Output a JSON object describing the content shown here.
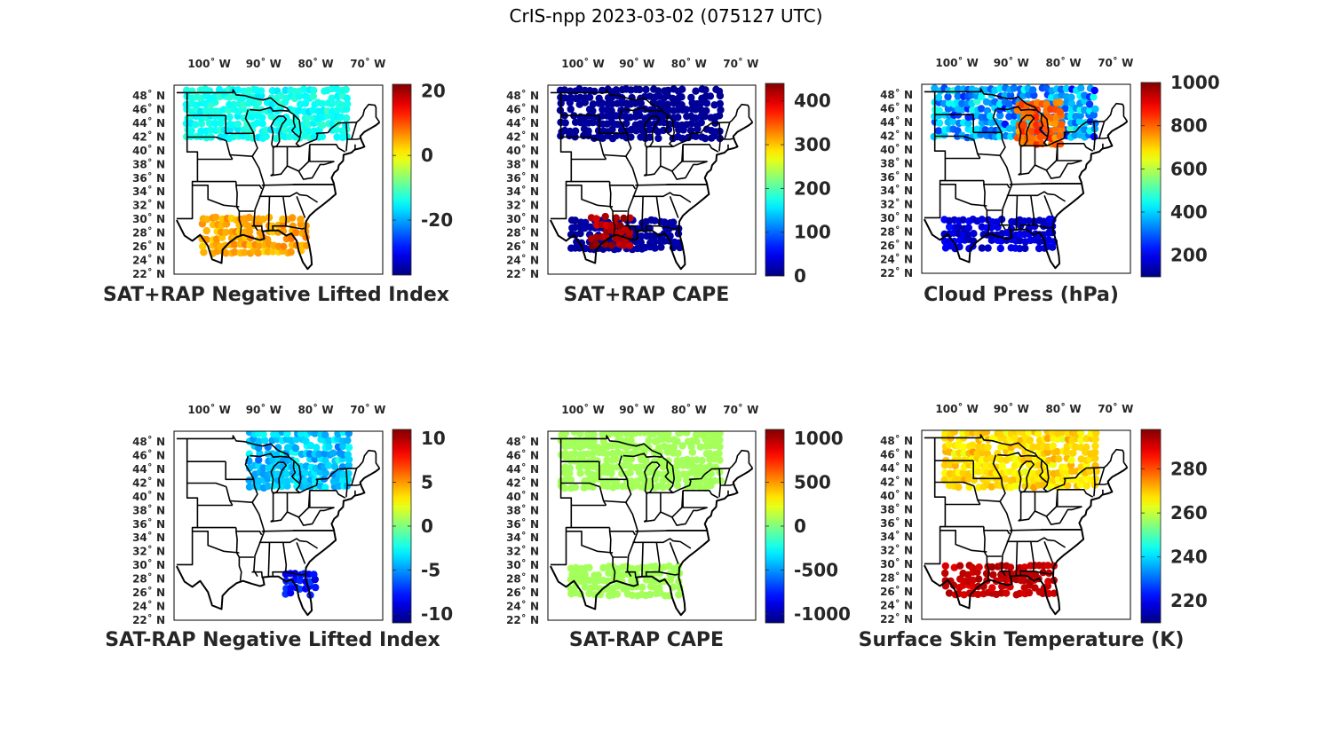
{
  "title": "CrIS-npp 2023-03-02 (075127 UTC)",
  "lon_ticks": [
    "100˚ W",
    "90˚ W",
    "80˚ W",
    "70˚ W"
  ],
  "lat_ticks": [
    "48˚ N",
    "46˚ N",
    "44˚ N",
    "42˚ N",
    "40˚ N",
    "38˚ N",
    "36˚ N",
    "34˚ N",
    "32˚ N",
    "30˚ N",
    "28˚ N",
    "26˚ N",
    "24˚ N",
    "22˚ N"
  ],
  "chart_data": [
    {
      "type": "map-scatter",
      "title": "SAT+RAP Negative Lifted Index",
      "colormap": "jet",
      "clim": [
        -37,
        22
      ],
      "colorbar_ticks": [
        20,
        0,
        -20
      ],
      "colorbar_tick_labels": [
        "20",
        "0",
        "-20"
      ],
      "regions": [
        {
          "name": "north-swath",
          "lon": [
            -104,
            -73
          ],
          "lat": [
            43,
            49.5
          ],
          "value": -14,
          "spread": 3
        },
        {
          "name": "south-swath",
          "lon": [
            -101,
            -81
          ],
          "lat": [
            27.5,
            32
          ],
          "value": 5,
          "spread": 4
        }
      ]
    },
    {
      "type": "map-scatter",
      "title": "SAT+RAP CAPE",
      "colormap": "jet",
      "clim": [
        0,
        440
      ],
      "colorbar_ticks": [
        400,
        300,
        200,
        100,
        0
      ],
      "colorbar_tick_labels": [
        "400",
        "300",
        "200",
        "100",
        "0"
      ],
      "regions": [
        {
          "name": "north-swath",
          "lon": [
            -104,
            -73
          ],
          "lat": [
            43,
            49.5
          ],
          "value": 10,
          "spread": 5
        },
        {
          "name": "south-swath",
          "lon": [
            -102,
            -81
          ],
          "lat": [
            28,
            32
          ],
          "value": 15,
          "spread": 8
        },
        {
          "name": "high-cape-texas",
          "lon": [
            -98,
            -91
          ],
          "lat": [
            28.5,
            32
          ],
          "value": 420,
          "spread": 30
        }
      ]
    },
    {
      "type": "map-scatter",
      "title": "Cloud Press (hPa)",
      "colormap": "jet",
      "clim": [
        100,
        1000
      ],
      "colorbar_ticks": [
        1000,
        800,
        600,
        400,
        200
      ],
      "colorbar_tick_labels": [
        "1000",
        "800",
        "600",
        "400",
        "200"
      ],
      "regions": [
        {
          "name": "north-swath",
          "lon": [
            -104,
            -73
          ],
          "lat": [
            43,
            49.5
          ],
          "value": 350,
          "spread": 180
        },
        {
          "name": "great-lakes",
          "lon": [
            -88,
            -80
          ],
          "lat": [
            42,
            47
          ],
          "value": 800,
          "spread": 80
        },
        {
          "name": "south-swath",
          "lon": [
            -102,
            -81
          ],
          "lat": [
            28,
            32
          ],
          "value": 180,
          "spread": 60
        }
      ]
    },
    {
      "type": "map-scatter",
      "title": "SAT-RAP Negative Lifted Index",
      "colormap": "jet",
      "clim": [
        -11,
        11
      ],
      "colorbar_ticks": [
        10,
        5,
        0,
        -5,
        -10
      ],
      "colorbar_tick_labels": [
        "10",
        "5",
        "0",
        "-5",
        "-10"
      ],
      "regions": [
        {
          "name": "north-swath",
          "lon": [
            -92,
            -73
          ],
          "lat": [
            42.5,
            49.5
          ],
          "value": -4,
          "spread": 2.5
        },
        {
          "name": "south-florida",
          "lon": [
            -85,
            -80
          ],
          "lat": [
            28,
            31
          ],
          "value": -8,
          "spread": 2
        }
      ]
    },
    {
      "type": "map-scatter",
      "title": "SAT-RAP CAPE",
      "colormap": "jet",
      "clim": [
        -1100,
        1100
      ],
      "colorbar_ticks": [
        1000,
        500,
        0,
        -500,
        -1000
      ],
      "colorbar_tick_labels": [
        "1000",
        "500",
        "0",
        "-500",
        "-1000"
      ],
      "regions": [
        {
          "name": "north-swath",
          "lon": [
            -104,
            -73
          ],
          "lat": [
            42.5,
            49.5
          ],
          "value": 80,
          "spread": 10
        },
        {
          "name": "south-swath",
          "lon": [
            -102,
            -81
          ],
          "lat": [
            28,
            32
          ],
          "value": 80,
          "spread": 10
        }
      ]
    },
    {
      "type": "map-scatter",
      "title": "Surface Skin Temperature (K)",
      "colormap": "jet",
      "clim": [
        210,
        298
      ],
      "colorbar_ticks": [
        280,
        260,
        240,
        220
      ],
      "colorbar_tick_labels": [
        "280",
        "260",
        "240",
        "220"
      ],
      "regions": [
        {
          "name": "north-swath",
          "lon": [
            -102,
            -73
          ],
          "lat": [
            42.5,
            49.5
          ],
          "value": 268,
          "spread": 7
        },
        {
          "name": "south-swath",
          "lon": [
            -102,
            -81
          ],
          "lat": [
            28,
            32
          ],
          "value": 292,
          "spread": 4
        }
      ]
    }
  ]
}
